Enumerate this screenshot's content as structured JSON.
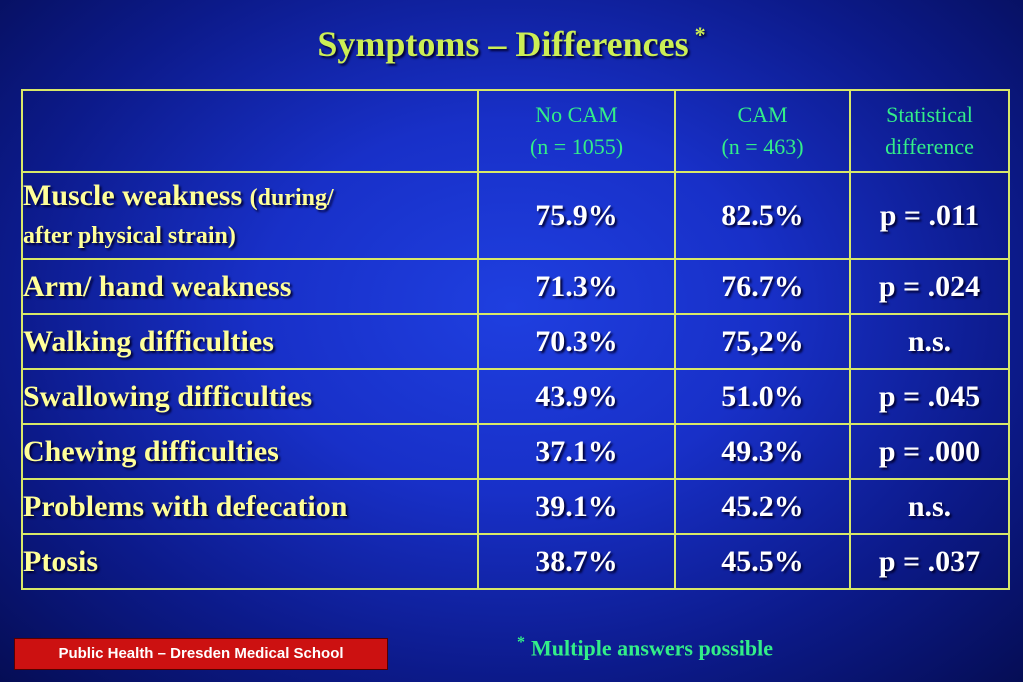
{
  "title": {
    "text": "Symptoms – Differences",
    "marker": "*"
  },
  "table": {
    "headers": [
      {
        "line1": "",
        "line2": ""
      },
      {
        "line1": "No CAM",
        "line2": "(n = 1055)"
      },
      {
        "line1": "CAM",
        "line2": "(n = 463)"
      },
      {
        "line1": "Statistical",
        "line2": "difference"
      }
    ],
    "rows": [
      {
        "label": "Muscle weakness",
        "label_note_line1": "(during/",
        "label_note_line2": "after physical strain)",
        "no_cam": "75.9%",
        "cam": "82.5%",
        "difference": "p = .011"
      },
      {
        "label": "Arm/ hand weakness",
        "no_cam": "71.3%",
        "cam": "76.7%",
        "difference": "p = .024"
      },
      {
        "label": "Walking difficulties",
        "no_cam": "70.3%",
        "cam": "75,2%",
        "difference": "n.s."
      },
      {
        "label": "Swallowing difficulties",
        "no_cam": "43.9%",
        "cam": "51.0%",
        "difference": "p = .045"
      },
      {
        "label": "Chewing difficulties",
        "no_cam": "37.1%",
        "cam": "49.3%",
        "difference": "p = .000"
      },
      {
        "label": "Problems with defecation",
        "no_cam": "39.1%",
        "cam": "45.2%",
        "difference": "n.s."
      },
      {
        "label": "Ptosis",
        "no_cam": "38.7%",
        "cam": "45.5%",
        "difference": "p = .037"
      }
    ]
  },
  "footnote": {
    "marker": "*",
    "text": "Multiple answers possible"
  },
  "badge": {
    "text": "Public Health – Dresden Medical School"
  },
  "colors": {
    "title": "#ccee55",
    "header_text": "#33ee88",
    "label_text": "#ffff99",
    "value_text": "#ffffff",
    "table_border": "#d8e868",
    "badge_background": "#cc1111",
    "background": "#1830c8"
  }
}
